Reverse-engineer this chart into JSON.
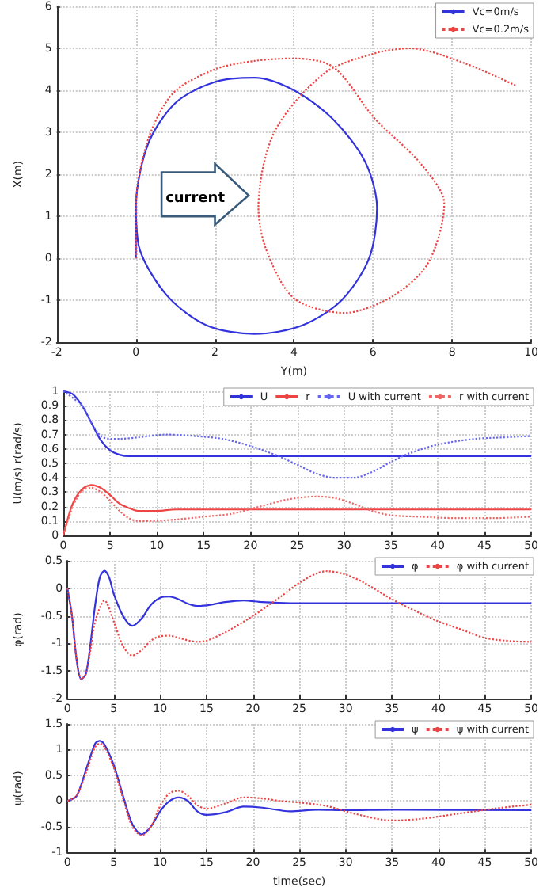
{
  "chart_data": [
    {
      "type": "line",
      "xlabel": "Y(m)",
      "ylabel": "X(m)",
      "xlim": [
        -2,
        10
      ],
      "ylim": [
        -2,
        6
      ],
      "xticks": [
        -2,
        0,
        2,
        4,
        6,
        8,
        10
      ],
      "yticks": [
        -2,
        -1,
        0,
        1,
        2,
        3,
        4,
        5,
        6
      ],
      "grid": true,
      "legend": "top right",
      "marker": "none",
      "annotations": [
        "current"
      ],
      "series": [
        {
          "name": "Vc=0m/s",
          "color": "#3333dd",
          "line_style": "solid",
          "x": [
            0,
            0,
            0.3,
            1,
            2,
            3,
            4,
            5,
            5.8,
            6.1,
            5.9,
            5.2,
            4.2,
            3,
            1.8,
            0.8,
            0.1,
            0
          ],
          "values": [
            0,
            1.2,
            2.7,
            3.7,
            4.2,
            4.3,
            4.0,
            3.3,
            2.3,
            1.2,
            0,
            -1.0,
            -1.6,
            -1.8,
            -1.6,
            -0.9,
            0.2,
            1.2
          ]
        },
        {
          "name": "Vc=0.2m/s",
          "color": "#ee4444",
          "line_style": "dotted",
          "x": [
            0,
            0,
            0.3,
            0.94,
            2,
            3,
            4,
            5,
            6.04,
            7.2,
            7.8,
            7.4,
            6.5,
            5.27,
            4,
            3.3,
            3.1,
            3.5,
            4.76,
            6.04,
            6.93,
            8.33,
            9.64
          ],
          "values": [
            0,
            1.2,
            2.8,
            3.93,
            4.5,
            4.7,
            4.76,
            4.55,
            3.33,
            2.26,
            1.3,
            -0.1,
            -0.9,
            -1.3,
            -0.95,
            0.2,
            1.2,
            3,
            4.4,
            4.88,
            5.0,
            4.64,
            4.1
          ]
        }
      ]
    },
    {
      "type": "line",
      "ylabel": "U(m/s) r(rad/s)",
      "xlim": [
        0,
        50
      ],
      "ylim": [
        0,
        1
      ],
      "xticks": [
        0,
        5,
        10,
        15,
        20,
        25,
        30,
        35,
        40,
        45,
        50
      ],
      "yticks": [
        0,
        0.1,
        0.2,
        0.3,
        0.4,
        0.5,
        0.6,
        0.7,
        0.8,
        0.9,
        1
      ],
      "grid": true,
      "legend": "top right",
      "marker": "none",
      "series": [
        {
          "name": "U",
          "color": "#3333dd",
          "line_style": "solid",
          "x": [
            0,
            1,
            2,
            3,
            4,
            5,
            6,
            7,
            8,
            50
          ],
          "values": [
            1.0,
            0.98,
            0.9,
            0.78,
            0.66,
            0.59,
            0.56,
            0.55,
            0.55,
            0.55
          ]
        },
        {
          "name": "r",
          "color": "#ee4444",
          "line_style": "solid",
          "x": [
            0,
            1,
            2,
            3,
            4,
            5,
            6,
            7,
            8,
            10,
            12,
            15,
            50
          ],
          "values": [
            0,
            0.22,
            0.32,
            0.35,
            0.33,
            0.28,
            0.22,
            0.19,
            0.17,
            0.17,
            0.18,
            0.18,
            0.18
          ]
        },
        {
          "name": "U with current",
          "color": "#6666ee",
          "line_style": "dotted",
          "x": [
            0,
            2,
            3,
            4,
            5,
            6,
            8,
            11,
            14,
            17,
            20,
            23,
            25,
            27,
            29,
            31,
            33,
            35,
            37,
            40,
            44,
            47,
            50
          ],
          "values": [
            1.0,
            0.9,
            0.78,
            0.69,
            0.67,
            0.67,
            0.68,
            0.7,
            0.69,
            0.67,
            0.62,
            0.55,
            0.49,
            0.43,
            0.4,
            0.4,
            0.44,
            0.51,
            0.57,
            0.63,
            0.67,
            0.68,
            0.69
          ]
        },
        {
          "name": "r with current",
          "color": "#ee6666",
          "line_style": "dotted",
          "x": [
            0,
            1,
            2,
            3,
            4,
            5,
            6,
            7,
            8,
            9,
            12,
            15,
            18,
            21,
            24,
            27,
            29,
            31,
            33,
            35,
            38,
            42,
            46,
            50
          ],
          "values": [
            0,
            0.2,
            0.31,
            0.33,
            0.3,
            0.24,
            0.17,
            0.12,
            0.1,
            0.1,
            0.11,
            0.13,
            0.15,
            0.2,
            0.25,
            0.27,
            0.26,
            0.22,
            0.17,
            0.14,
            0.13,
            0.12,
            0.12,
            0.13
          ]
        }
      ]
    },
    {
      "type": "line",
      "ylabel": "φ(rad)",
      "xlim": [
        0,
        50
      ],
      "ylim": [
        -2,
        0.5
      ],
      "xticks": [
        0,
        5,
        10,
        15,
        20,
        25,
        30,
        35,
        40,
        45,
        50
      ],
      "yticks": [
        -2,
        -1.5,
        -1,
        -0.5,
        0,
        0.5
      ],
      "grid": true,
      "legend": "top right",
      "marker": "none",
      "series": [
        {
          "name": "φ",
          "color": "#3333dd",
          "line_style": "solid",
          "x": [
            0,
            0.5,
            1,
            1.5,
            2,
            2.5,
            3,
            3.5,
            4,
            4.5,
            5,
            6,
            7,
            8,
            9,
            10,
            11,
            12,
            13,
            14,
            15,
            17,
            19,
            21,
            24,
            30,
            50
          ],
          "values": [
            0,
            -0.5,
            -1.3,
            -1.65,
            -1.55,
            -1.0,
            -0.3,
            0.2,
            0.32,
            0.2,
            -0.1,
            -0.5,
            -0.68,
            -0.55,
            -0.3,
            -0.17,
            -0.15,
            -0.2,
            -0.28,
            -0.32,
            -0.31,
            -0.25,
            -0.22,
            -0.25,
            -0.27,
            -0.27,
            -0.27
          ]
        },
        {
          "name": "φ with current",
          "color": "#ee4444",
          "line_style": "dotted",
          "x": [
            0,
            0.5,
            1,
            1.5,
            2,
            2.5,
            3,
            4,
            5,
            6,
            7,
            8,
            9,
            10,
            11,
            12,
            14,
            15,
            17,
            20,
            23,
            25,
            27,
            28,
            30,
            32,
            35,
            38,
            40,
            43,
            45,
            48,
            50
          ],
          "values": [
            0,
            -0.5,
            -1.3,
            -1.65,
            -1.55,
            -1.1,
            -0.6,
            -0.22,
            -0.6,
            -1.05,
            -1.22,
            -1.12,
            -0.95,
            -0.87,
            -0.86,
            -0.9,
            -0.97,
            -0.95,
            -0.8,
            -0.5,
            -0.15,
            0.1,
            0.28,
            0.31,
            0.25,
            0.1,
            -0.2,
            -0.45,
            -0.6,
            -0.78,
            -0.9,
            -0.96,
            -0.97
          ]
        }
      ]
    },
    {
      "type": "line",
      "xlabel": "time(sec)",
      "ylabel": "ψ(rad)",
      "xlim": [
        0,
        50
      ],
      "ylim": [
        -1,
        1.5
      ],
      "xticks": [
        0,
        5,
        10,
        15,
        20,
        25,
        30,
        35,
        40,
        45,
        50
      ],
      "yticks": [
        -1,
        -0.5,
        0,
        0.5,
        1,
        1.5
      ],
      "grid": true,
      "legend": "top right",
      "marker": "none",
      "series": [
        {
          "name": "ψ",
          "color": "#3333dd",
          "line_style": "solid",
          "x": [
            0,
            1,
            2,
            3,
            3.5,
            4,
            5,
            6,
            7,
            8,
            9,
            10,
            11,
            12,
            13,
            14,
            15,
            17,
            19,
            21,
            24,
            27,
            30,
            35,
            50
          ],
          "values": [
            0,
            0.1,
            0.6,
            1.12,
            1.17,
            1.1,
            0.7,
            0.1,
            -0.45,
            -0.65,
            -0.5,
            -0.2,
            0,
            0.07,
            0,
            -0.2,
            -0.27,
            -0.22,
            -0.11,
            -0.13,
            -0.2,
            -0.17,
            -0.18,
            -0.17,
            -0.18
          ]
        },
        {
          "name": "ψ with current",
          "color": "#ee4444",
          "line_style": "dotted",
          "x": [
            0,
            1,
            2,
            3,
            3.5,
            4,
            5,
            6,
            7,
            8,
            9,
            10,
            11,
            12,
            13,
            14,
            15,
            17,
            19,
            21,
            23,
            25,
            28,
            31,
            35,
            38,
            42,
            46,
            50
          ],
          "values": [
            0,
            0.1,
            0.55,
            1.05,
            1.12,
            1.05,
            0.65,
            0.05,
            -0.5,
            -0.67,
            -0.5,
            -0.1,
            0.15,
            0.2,
            0.1,
            -0.08,
            -0.15,
            -0.05,
            0.07,
            0.05,
            0,
            -0.03,
            -0.1,
            -0.25,
            -0.38,
            -0.35,
            -0.25,
            -0.15,
            -0.07
          ]
        }
      ]
    }
  ]
}
